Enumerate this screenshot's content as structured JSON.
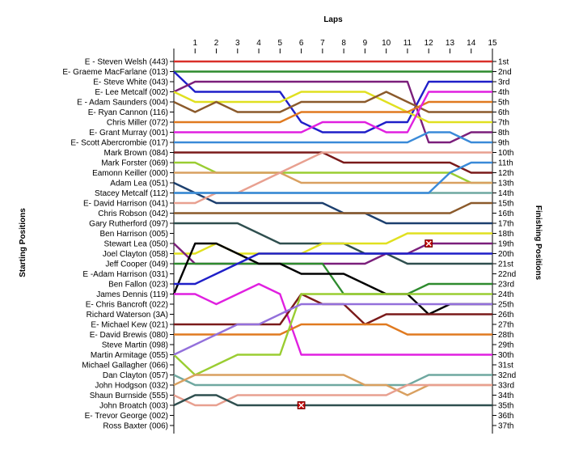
{
  "chart_data": {
    "type": "line",
    "title": "Laps",
    "ylabel_left": "Starting Positions",
    "ylabel_right": "Finishing Positions",
    "x": [
      0,
      1,
      2,
      3,
      4,
      5,
      6,
      7,
      8,
      9,
      10,
      11,
      12,
      13,
      14,
      15
    ],
    "x_tick_labels": [
      "1",
      "2",
      "3",
      "4",
      "5",
      "6",
      "7",
      "8",
      "9",
      "10",
      "11",
      "12",
      "13",
      "14",
      "15"
    ],
    "y_range": [
      1,
      37
    ],
    "left_labels": [
      "E - Steven Welsh (443)",
      "E- Graeme MacFarlane (013)",
      "E- Steve White (043)",
      "E- Lee Metcalf (002)",
      "E - Adam Saunders (004)",
      "E- Ryan Cannon (116)",
      "Chris Miller (072)",
      "E- Grant Murray (001)",
      "E- Scott Abercrombie (017)",
      "Mark Brown (084)",
      "Mark Forster (069)",
      "Eamonn Keiller (000)",
      "Adam Lea (051)",
      "Stacey Metcalf (112)",
      "E- David Harrison (041)",
      "Chris Robson (042)",
      "Gary Rutherford (097)",
      "Ben Harrison (005)",
      "Stewart Lea (050)",
      "Joel Clayton (058)",
      "Jeff Cooper (049)",
      "E -Adam Harrison (031)",
      "Ben Fallon (023)",
      "James Dennis (119)",
      "E- Chris Bancroft (022)",
      "Richard Waterson (3A)",
      "E- Michael Kew (021)",
      "E- David Brewis (080)",
      "Steve Martin (098)",
      "Martin Armitage (055)",
      "Michael Gallagher (066)",
      "Dan Clayton (057)",
      "John Hodgson (032)",
      "Shaun Burnside (555)",
      "John Broatch (003)",
      "E- Trevor George (002)",
      "Ross Baxter (006)"
    ],
    "right_labels": [
      "1st",
      "2nd",
      "3rd",
      "4th",
      "5th",
      "6th",
      "7th",
      "8th",
      "9th",
      "10th",
      "11th",
      "12th",
      "13th",
      "14th",
      "15th",
      "16th",
      "17th",
      "18th",
      "19th",
      "20th",
      "21st",
      "22nd",
      "23rd",
      "24th",
      "25th",
      "26th",
      "27th",
      "28th",
      "29th",
      "30th",
      "31st",
      "32nd",
      "33rd",
      "34th",
      "35th",
      "36th",
      "37th"
    ],
    "series": [
      {
        "color": "#d9302a",
        "values": [
          1,
          1,
          1,
          1,
          1,
          1,
          1,
          1,
          1,
          1,
          1,
          1,
          1,
          1,
          1,
          1
        ]
      },
      {
        "color": "#2e8b2e",
        "values": [
          2,
          2,
          2,
          2,
          2,
          2,
          2,
          2,
          2,
          2,
          2,
          2,
          2,
          2,
          2,
          2
        ]
      },
      {
        "color": "#1f1fc8",
        "values": [
          2,
          4,
          4,
          4,
          4,
          4,
          7,
          8,
          8,
          8,
          7,
          7,
          3,
          3,
          3,
          3
        ]
      },
      {
        "color": "#7b1f7b",
        "values": [
          4,
          3,
          3,
          3,
          3,
          3,
          3,
          3,
          3,
          3,
          3,
          3,
          9,
          9,
          8,
          8
        ]
      },
      {
        "color": "#e0e020",
        "values": [
          4,
          5,
          5,
          5,
          5,
          5,
          4,
          4,
          4,
          4,
          5,
          6,
          7,
          7,
          7,
          7
        ]
      },
      {
        "color": "#8b5a2b",
        "values": [
          5,
          6,
          5,
          6,
          6,
          6,
          5,
          5,
          5,
          5,
          4,
          5,
          6,
          6,
          6,
          6
        ]
      },
      {
        "color": "#e07a20",
        "values": [
          7,
          7,
          7,
          7,
          7,
          7,
          6,
          6,
          6,
          6,
          6,
          6,
          5,
          5,
          5,
          5
        ]
      },
      {
        "color": "#e020e0",
        "values": [
          8,
          8,
          8,
          8,
          8,
          8,
          8,
          7,
          7,
          7,
          8,
          8,
          4,
          4,
          4,
          4
        ]
      },
      {
        "color": "#3a8ad8",
        "values": [
          9,
          9,
          9,
          9,
          9,
          9,
          9,
          9,
          9,
          9,
          9,
          9,
          8,
          8,
          9,
          9
        ]
      },
      {
        "color": "#7a1a1a",
        "values": [
          10,
          10,
          10,
          10,
          10,
          10,
          10,
          10,
          11,
          11,
          11,
          11,
          11,
          11,
          12,
          12
        ]
      },
      {
        "color": "#9acd32",
        "values": [
          11,
          11,
          12,
          12,
          12,
          12,
          12,
          12,
          12,
          12,
          12,
          12,
          12,
          12,
          13,
          13
        ]
      },
      {
        "color": "#d9a060",
        "values": [
          12,
          12,
          12,
          12,
          12,
          12,
          13,
          13,
          13,
          13,
          13,
          13,
          13,
          13,
          13,
          13
        ]
      },
      {
        "color": "#1c3f6e",
        "values": [
          13,
          14,
          15,
          15,
          15,
          15,
          15,
          15,
          16,
          16,
          17,
          17,
          17,
          17,
          17,
          17
        ]
      },
      {
        "color": "#e8a090",
        "values": [
          15,
          15,
          14,
          14,
          13,
          12,
          11,
          10,
          10,
          10,
          10,
          10,
          10,
          10,
          10,
          10
        ]
      },
      {
        "color": "#6fa8a0",
        "values": [
          14,
          14,
          14,
          14,
          14,
          14,
          14,
          14,
          14,
          14,
          14,
          14,
          14,
          14,
          14,
          14
        ]
      },
      {
        "color": "#3a8ad8",
        "values": [
          14,
          14,
          14,
          14,
          14,
          14,
          14,
          14,
          14,
          14,
          14,
          14,
          14,
          12,
          11,
          11
        ]
      },
      {
        "color": "#8b5a2b",
        "values": [
          16,
          16,
          16,
          16,
          16,
          16,
          16,
          16,
          16,
          16,
          16,
          16,
          16,
          16,
          15,
          15
        ]
      },
      {
        "color": "#2f4f4f",
        "values": [
          17,
          17,
          17,
          17,
          18,
          19,
          19,
          19,
          19,
          20,
          20,
          21,
          21,
          21,
          21,
          21
        ]
      },
      {
        "color": "#e0e020",
        "values": [
          20,
          20,
          19,
          20,
          20,
          20,
          20,
          19,
          19,
          19,
          19,
          18,
          18,
          18,
          18,
          18
        ]
      },
      {
        "color": "#7b1f7b",
        "values": [
          19,
          21,
          21,
          21,
          21,
          21,
          21,
          21,
          21,
          21,
          20,
          20,
          19,
          19,
          19,
          19
        ]
      },
      {
        "color": "#2e8b2e",
        "values": [
          21,
          21,
          21,
          21,
          21,
          21,
          21,
          21,
          24,
          24,
          24,
          24,
          23,
          23,
          23,
          23
        ]
      },
      {
        "color": "#000000",
        "values": [
          24,
          19,
          19,
          20,
          21,
          21,
          22,
          22,
          22,
          23,
          24,
          24,
          26,
          25,
          25,
          25
        ]
      },
      {
        "color": "#1f1fc8",
        "values": [
          23,
          23,
          22,
          21,
          20,
          20,
          20,
          20,
          20,
          20,
          20,
          20,
          20,
          20,
          20,
          20
        ]
      },
      {
        "color": "#e020e0",
        "values": [
          24,
          24,
          25,
          24,
          23,
          24,
          30,
          30,
          30,
          30,
          30,
          30,
          30,
          30,
          30,
          30
        ]
      },
      {
        "color": "#7a1a1a",
        "values": [
          27,
          27,
          27,
          27,
          27,
          27,
          24,
          25,
          25,
          27,
          26,
          26,
          26,
          26,
          26,
          26
        ]
      },
      {
        "color": "#e07a20",
        "values": [
          28,
          28,
          28,
          28,
          28,
          28,
          27,
          27,
          27,
          27,
          27,
          28,
          28,
          28,
          28,
          28
        ]
      },
      {
        "color": "#9acd32",
        "values": [
          30,
          32,
          31,
          30,
          30,
          30,
          24,
          24,
          24,
          24,
          24,
          24,
          24,
          24,
          24,
          24
        ]
      },
      {
        "color": "#9370db",
        "values": [
          30,
          29,
          28,
          27,
          27,
          26,
          25,
          25,
          25,
          25,
          25,
          25,
          25,
          25,
          25,
          25
        ]
      },
      {
        "color": "#6fa8a0",
        "values": [
          32,
          33,
          33,
          33,
          33,
          33,
          33,
          33,
          33,
          33,
          33,
          33,
          32,
          32,
          32,
          32
        ]
      },
      {
        "color": "#d9a060",
        "values": [
          33,
          32,
          32,
          32,
          32,
          32,
          32,
          32,
          32,
          33,
          33,
          34,
          33,
          33,
          33,
          33
        ]
      },
      {
        "color": "#e8a090",
        "values": [
          34,
          35,
          35,
          34,
          34,
          34,
          34,
          34,
          34,
          34,
          34,
          33,
          33,
          33,
          33,
          33
        ]
      },
      {
        "color": "#2f4f4f",
        "values": [
          35,
          34,
          34,
          35,
          35,
          35,
          35,
          35,
          35,
          35,
          35,
          35,
          35,
          35,
          35,
          35
        ]
      }
    ],
    "retired": [
      {
        "lap": 12,
        "position": 19
      },
      {
        "lap": 6,
        "position": 35
      }
    ]
  }
}
